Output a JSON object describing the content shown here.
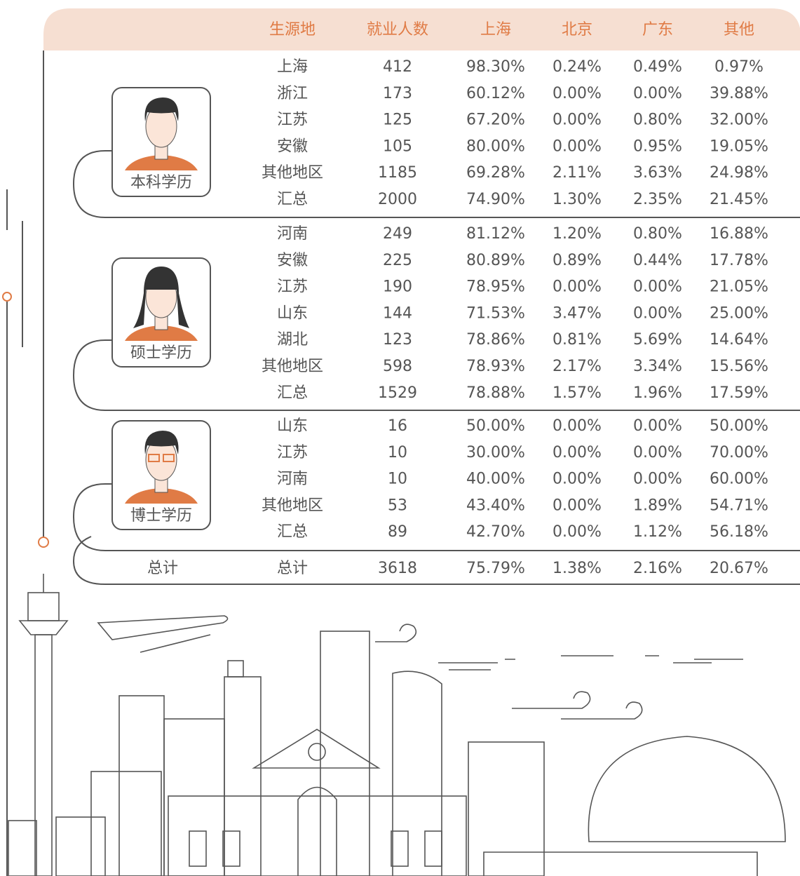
{
  "table": {
    "headers": [
      "生源地",
      "就业人数",
      "上海",
      "北京",
      "广东",
      "其他"
    ],
    "groups": [
      {
        "label": "本科学历",
        "rows": [
          [
            "上海",
            "412",
            "98.30%",
            "0.24%",
            "0.49%",
            "0.97%"
          ],
          [
            "浙江",
            "173",
            "60.12%",
            "0.00%",
            "0.00%",
            "39.88%"
          ],
          [
            "江苏",
            "125",
            "67.20%",
            "0.00%",
            "0.80%",
            "32.00%"
          ],
          [
            "安徽",
            "105",
            "80.00%",
            "0.00%",
            "0.95%",
            "19.05%"
          ],
          [
            "其他地区",
            "1185",
            "69.28%",
            "2.11%",
            "3.63%",
            "24.98%"
          ],
          [
            "汇总",
            "2000",
            "74.90%",
            "1.30%",
            "2.35%",
            "21.45%"
          ]
        ]
      },
      {
        "label": "硕士学历",
        "rows": [
          [
            "河南",
            "249",
            "81.12%",
            "1.20%",
            "0.80%",
            "16.88%"
          ],
          [
            "安徽",
            "225",
            "80.89%",
            "0.89%",
            "0.44%",
            "17.78%"
          ],
          [
            "江苏",
            "190",
            "78.95%",
            "0.00%",
            "0.00%",
            "21.05%"
          ],
          [
            "山东",
            "144",
            "71.53%",
            "3.47%",
            "0.00%",
            "25.00%"
          ],
          [
            "湖北",
            "123",
            "78.86%",
            "0.81%",
            "5.69%",
            "14.64%"
          ],
          [
            "其他地区",
            "598",
            "78.93%",
            "2.17%",
            "3.34%",
            "15.56%"
          ],
          [
            "汇总",
            "1529",
            "78.88%",
            "1.57%",
            "1.96%",
            "17.59%"
          ]
        ]
      },
      {
        "label": "博士学历",
        "rows": [
          [
            "山东",
            "16",
            "50.00%",
            "0.00%",
            "0.00%",
            "50.00%"
          ],
          [
            "江苏",
            "10",
            "30.00%",
            "0.00%",
            "0.00%",
            "70.00%"
          ],
          [
            "河南",
            "10",
            "40.00%",
            "0.00%",
            "0.00%",
            "60.00%"
          ],
          [
            "其他地区",
            "53",
            "43.40%",
            "0.00%",
            "1.89%",
            "54.71%"
          ],
          [
            "汇总",
            "89",
            "42.70%",
            "0.00%",
            "1.12%",
            "56.18%"
          ]
        ]
      }
    ],
    "total": [
      "总计",
      "总计",
      "3618",
      "75.79%",
      "1.38%",
      "2.16%",
      "20.67%"
    ]
  }
}
